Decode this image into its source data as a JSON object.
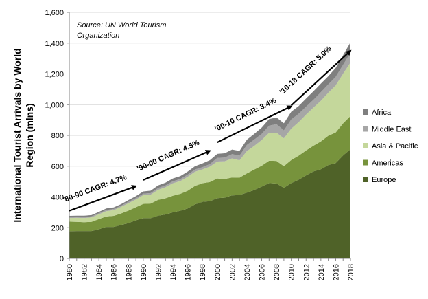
{
  "chart_data": {
    "type": "area",
    "stacked": true,
    "title": "",
    "ylabel": "International Tourist Arrivals by World Region (mlns)",
    "xlabel": "",
    "ylim": [
      0,
      1600
    ],
    "y_ticks": [
      0,
      200,
      400,
      600,
      800,
      1000,
      1200,
      1400,
      1600
    ],
    "y_tick_labels": [
      "0",
      "200",
      "400",
      "600",
      "800",
      "1,000",
      "1,200",
      "1,400",
      "1,600"
    ],
    "x_tick_labels": [
      "1980",
      "1982",
      "1984",
      "1986",
      "1988",
      "1990",
      "1992",
      "1994",
      "1996",
      "1998",
      "2000",
      "2002",
      "2004",
      "2006",
      "2008",
      "2010",
      "2012",
      "2014",
      "2016",
      "2018"
    ],
    "x": [
      1980,
      1981,
      1982,
      1983,
      1984,
      1985,
      1986,
      1987,
      1988,
      1989,
      1990,
      1991,
      1992,
      1993,
      1994,
      1995,
      1996,
      1997,
      1998,
      1999,
      2000,
      2001,
      2002,
      2003,
      2004,
      2005,
      2006,
      2007,
      2008,
      2009,
      2010,
      2011,
      2012,
      2013,
      2014,
      2015,
      2016,
      2017,
      2018
    ],
    "grid": true,
    "legend_position": "right",
    "source_note": [
      "Source: UN World Tourism",
      "Organization"
    ],
    "series": [
      {
        "name": "Europe",
        "color": "#4f6228",
        "values": [
          177,
          178,
          178,
          178,
          190,
          205,
          205,
          218,
          230,
          248,
          262,
          262,
          278,
          286,
          300,
          310,
          325,
          352,
          368,
          372,
          392,
          395,
          410,
          412,
          428,
          445,
          467,
          490,
          487,
          459,
          490,
          512,
          540,
          566,
          580,
          607,
          620,
          670,
          710
        ]
      },
      {
        "name": "Americas",
        "color": "#77933c",
        "values": [
          62,
          60,
          58,
          60,
          66,
          68,
          72,
          75,
          81,
          85,
          93,
          95,
          103,
          105,
          108,
          110,
          115,
          120,
          121,
          125,
          128,
          122,
          116,
          113,
          125,
          133,
          136,
          145,
          147,
          141,
          150,
          156,
          162,
          167,
          181,
          191,
          199,
          208,
          216
        ]
      },
      {
        "name": "Asia & Pacific",
        "color": "#c4d79b",
        "values": [
          24,
          26,
          27,
          29,
          31,
          34,
          37,
          42,
          48,
          50,
          56,
          58,
          65,
          72,
          81,
          83,
          91,
          92,
          90,
          100,
          110,
          115,
          124,
          113,
          145,
          154,
          167,
          182,
          184,
          181,
          204,
          218,
          233,
          248,
          264,
          279,
          306,
          323,
          348
        ]
      },
      {
        "name": "Middle East",
        "color": "#a6a6a6",
        "values": [
          7,
          7,
          7,
          7,
          7,
          8,
          8,
          8,
          9,
          9,
          10,
          10,
          12,
          12,
          13,
          13,
          14,
          15,
          15,
          17,
          24,
          24,
          28,
          30,
          40,
          41,
          40,
          46,
          55,
          52,
          60,
          55,
          52,
          51,
          56,
          55,
          56,
          58,
          64
        ]
      },
      {
        "name": "Africa",
        "color": "#7f7f7f",
        "values": [
          7,
          7,
          8,
          8,
          9,
          10,
          10,
          10,
          12,
          13,
          15,
          16,
          17,
          18,
          18,
          19,
          20,
          21,
          24,
          25,
          26,
          28,
          30,
          31,
          34,
          37,
          41,
          43,
          44,
          46,
          50,
          50,
          53,
          55,
          56,
          53,
          58,
          63,
          67
        ]
      }
    ],
    "annotations": [
      {
        "label": "'80-90 CAGR: 4.7%",
        "from": [
          1980,
          310
        ],
        "to": [
          1989,
          470
        ]
      },
      {
        "label": "'90-00 CAGR: 4.5%",
        "from": [
          1990,
          510
        ],
        "to": [
          1999,
          700
        ]
      },
      {
        "label": "'00-10 CAGR: 3.4%",
        "from": [
          2000,
          755
        ],
        "to": [
          2010,
          990
        ]
      },
      {
        "label": "'10-18 CAGR: 5.0%",
        "from": [
          2010,
          995
        ],
        "to": [
          2018,
          1350
        ]
      }
    ]
  }
}
